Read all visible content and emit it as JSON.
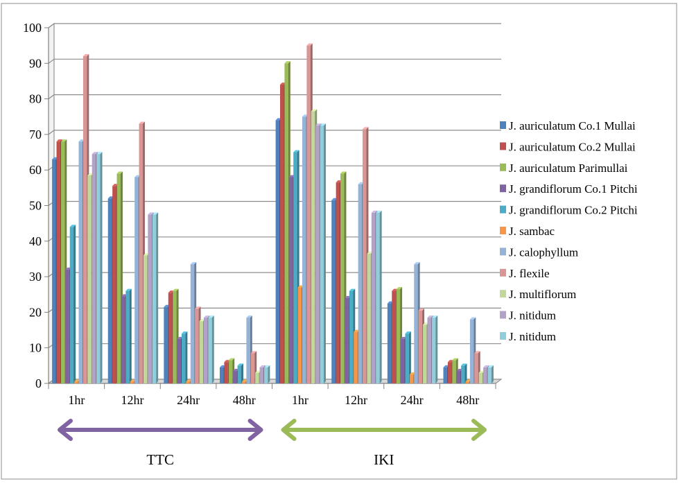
{
  "chart_data": {
    "type": "bar",
    "title": "",
    "xlabel": "",
    "ylabel": "",
    "ylim": [
      0,
      100
    ],
    "yticks": [
      0,
      10,
      20,
      30,
      40,
      50,
      60,
      70,
      80,
      90,
      100
    ],
    "grid": true,
    "legend_position": "right",
    "categories": [
      "1hr",
      "12hr",
      "24hr",
      "48hr",
      "1hr",
      "12hr",
      "24hr",
      "48hr"
    ],
    "groups": [
      {
        "label": "TTC",
        "color": "#8064A2",
        "category_span": [
          0,
          3
        ]
      },
      {
        "label": "IKI",
        "color": "#9BBB59",
        "category_span": [
          4,
          7
        ]
      }
    ],
    "series": [
      {
        "name": "J. auriculatum Co.1 Mullai",
        "color": "#4F81BD",
        "values": [
          63,
          52,
          21.5,
          4.5,
          74,
          51.5,
          22.5,
          4.5
        ]
      },
      {
        "name": "J. auriculatum Co.2 Mullai",
        "color": "#C0504D",
        "values": [
          68,
          55.5,
          25.5,
          6,
          84,
          56.5,
          26,
          6
        ]
      },
      {
        "name": "J. auriculatum Parimullai",
        "color": "#9BBB59",
        "values": [
          68,
          59,
          26,
          6.5,
          90,
          59,
          26.5,
          6.5
        ]
      },
      {
        "name": "J. grandiflorum Co.1 Pitchi",
        "color": "#8064A2",
        "values": [
          32,
          24.5,
          12.5,
          3.5,
          58,
          24,
          12.5,
          3.5
        ]
      },
      {
        "name": "J. grandiflorum Co.2 Pitchi",
        "color": "#4BACC6",
        "values": [
          44,
          26,
          14,
          5,
          65,
          26,
          14,
          5
        ]
      },
      {
        "name": "J. sambac",
        "color": "#F79646",
        "values": [
          0.5,
          0.5,
          0.5,
          0.5,
          27,
          14.5,
          2.5,
          0.5
        ]
      },
      {
        "name": "J. calophyllum",
        "color": "#95B3D7",
        "values": [
          68,
          58,
          33.5,
          18.5,
          75,
          56,
          33.5,
          18
        ]
      },
      {
        "name": "J. flexile",
        "color": "#D99694",
        "values": [
          92,
          73,
          21,
          8.5,
          95,
          71.5,
          20.5,
          8.5
        ]
      },
      {
        "name": "J. multiflorum",
        "color": "#C3D69B",
        "values": [
          58.5,
          36,
          17.5,
          3,
          76.5,
          36.5,
          16.5,
          3
        ]
      },
      {
        "name": "J. nitidum",
        "color": "#B3A2C7",
        "values": [
          64.5,
          47.5,
          18.5,
          4.5,
          72.5,
          48,
          18.5,
          4.5
        ]
      },
      {
        "name": "J. nitidum",
        "color": "#92CDDC",
        "values": [
          64.5,
          47.5,
          18.5,
          4.5,
          72.5,
          48,
          18.5,
          4.5
        ]
      }
    ]
  }
}
